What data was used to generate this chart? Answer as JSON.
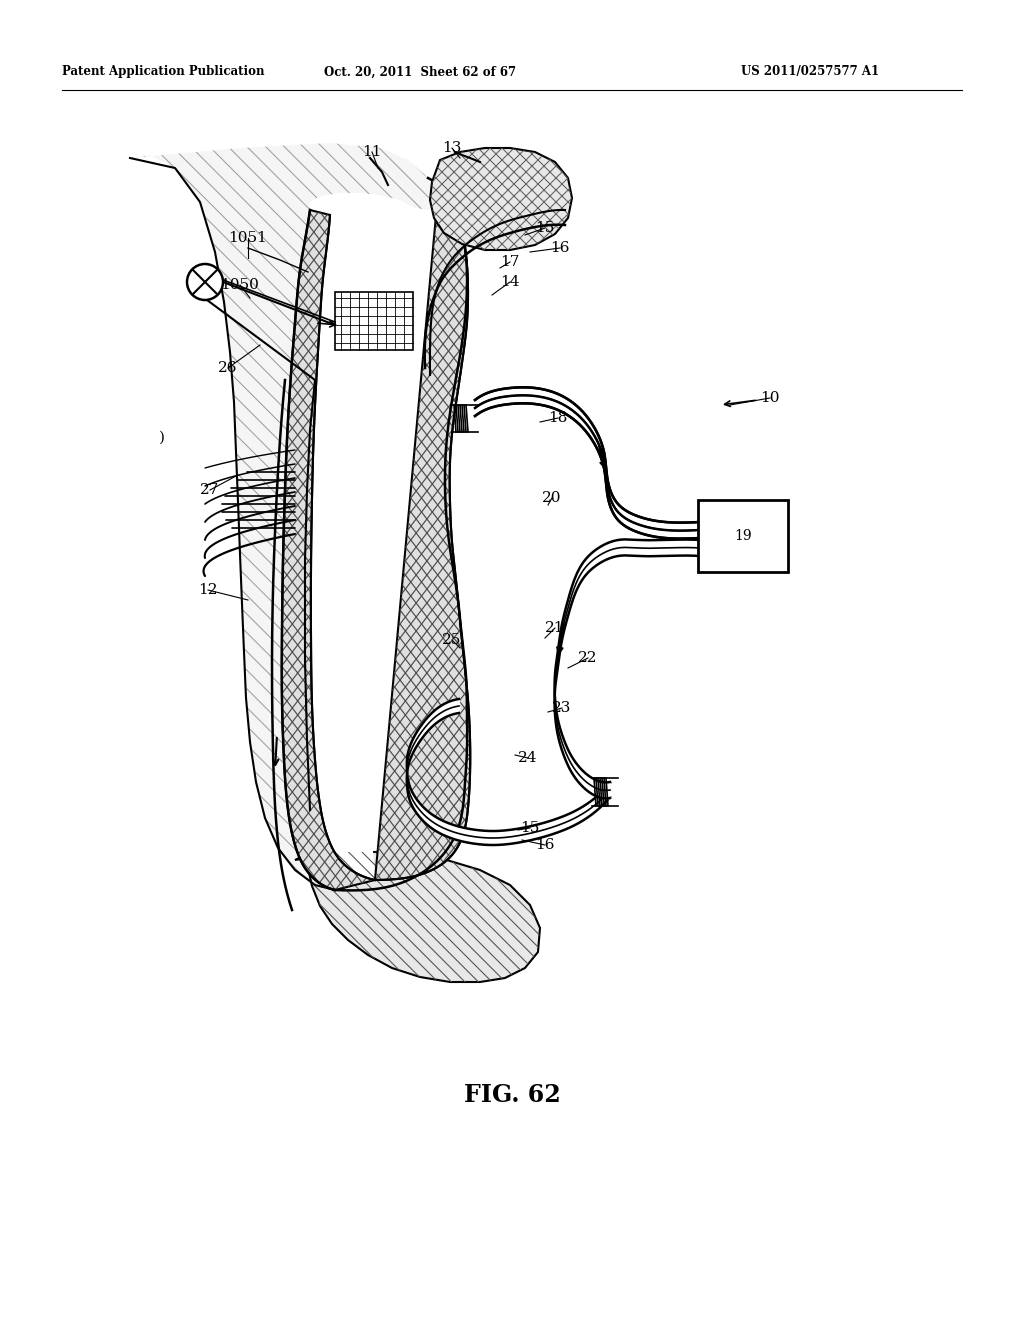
{
  "header_left": "Patent Application Publication",
  "header_mid": "Oct. 20, 2011  Sheet 62 of 67",
  "header_right": "US 2011/0257577 A1",
  "figure_label": "FIG. 62",
  "bg_color": "#ffffff"
}
